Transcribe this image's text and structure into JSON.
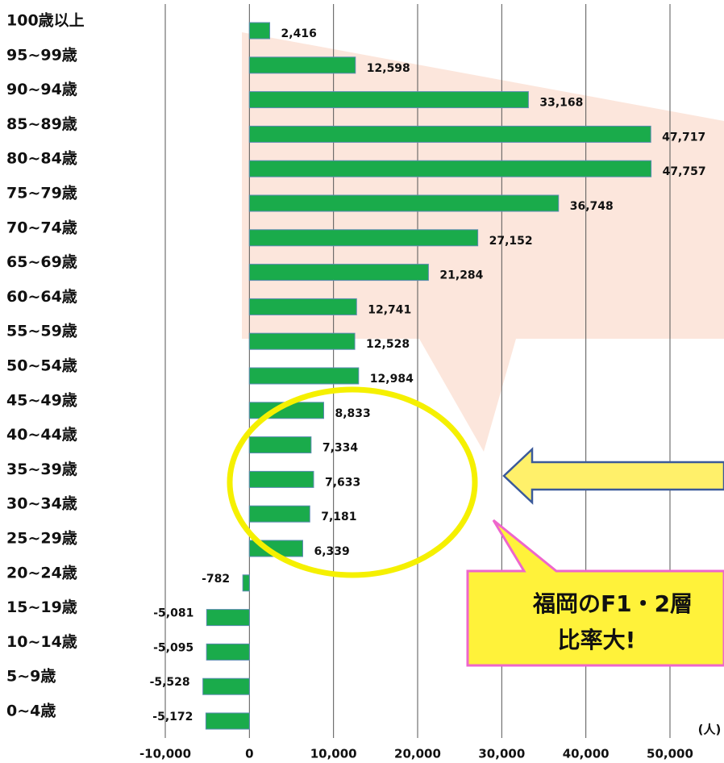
{
  "chart_data": {
    "type": "barh",
    "unit_label": "(人)",
    "color": "#1aab4b",
    "categories": [
      "100歳以上",
      "95~99歳",
      "90~94歳",
      "85~89歳",
      "80~84歳",
      "75~79歳",
      "70~74歳",
      "65~69歳",
      "60~64歳",
      "55~59歳",
      "50~54歳",
      "45~49歳",
      "40~44歳",
      "35~39歳",
      "30~34歳",
      "25~29歳",
      "20~24歳",
      "15~19歳",
      "10~14歳",
      "5~9歳",
      "0~4歳"
    ],
    "values": [
      2416,
      12598,
      33168,
      47717,
      47757,
      36748,
      27152,
      21284,
      12741,
      12528,
      12984,
      8833,
      7334,
      7633,
      7181,
      6339,
      -782,
      -5081,
      -5095,
      -5528,
      -5172
    ],
    "value_labels": [
      "2,416",
      "12,598",
      "33,168",
      "47,717",
      "47,757",
      "36,748",
      "27,152",
      "21,284",
      "12,741",
      "12,528",
      "12,984",
      "8,833",
      "7,334",
      "7,633",
      "7,181",
      "6,339",
      "-782",
      "-5,081",
      "-5,095",
      "-5,528",
      "-5,172"
    ],
    "xlim": [
      -10000,
      50000
    ],
    "xticks": [
      {
        "value": -10000,
        "label": "-10,000"
      },
      0,
      {
        "value": 10000,
        "label": "10,000"
      },
      {
        "value": 20000,
        "label": "20,000"
      },
      {
        "value": 30000,
        "label": "30,000"
      },
      {
        "value": 40000,
        "label": "40,000"
      },
      {
        "value": 50000,
        "label": "50,000"
      }
    ],
    "grid": true,
    "callout": {
      "lines": [
        "福岡のF1・2層",
        "比率大!"
      ]
    }
  }
}
